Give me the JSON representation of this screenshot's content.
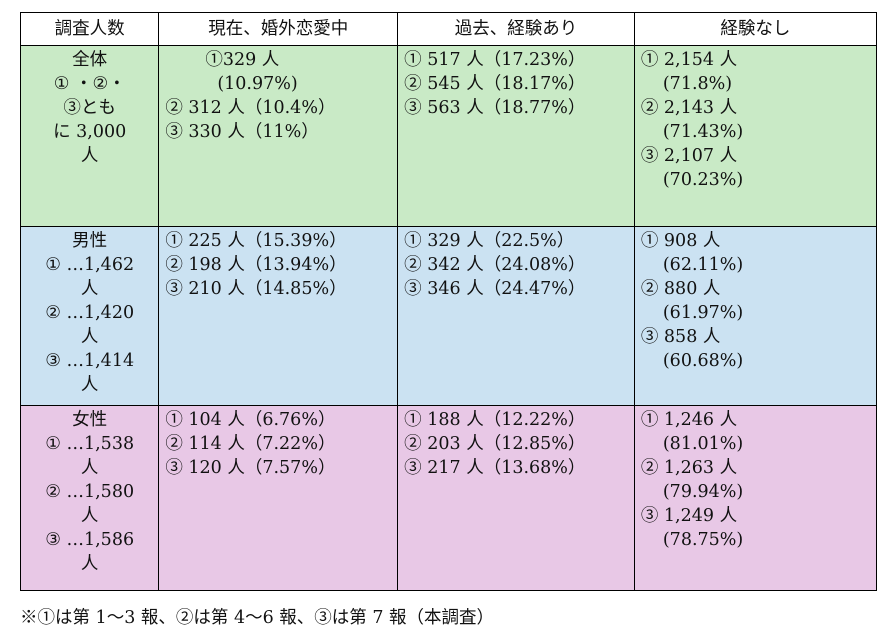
{
  "headers": [
    "調査人数",
    "現在、婚外恋愛中",
    "過去、経験あり",
    "経験なし"
  ],
  "rows": [
    {
      "group_lines": [
        "全体",
        "① ・②・",
        "③とも",
        "に 3,000",
        "人"
      ],
      "current": [
        "①329 人",
        "(10.97%)",
        "② 312 人（10.4%）",
        "③ 330 人（11%）"
      ],
      "past": [
        "① 517 人（17.23%）",
        "② 545 人（18.17%）",
        "③ 563 人（18.77%）"
      ],
      "none": [
        "① 2,154 人",
        "(71.8%)",
        "② 2,143 人",
        "(71.43%)",
        "③ 2,107 人",
        "(70.23%)"
      ]
    },
    {
      "group_lines": [
        "男性",
        "① …1,462",
        "人",
        "② …1,420",
        "人",
        "③ …1,414",
        "人"
      ],
      "current": [
        "① 225 人（15.39%）",
        "② 198 人（13.94%）",
        "③ 210 人（14.85%）"
      ],
      "past": [
        "① 329 人（22.5%）",
        "② 342 人（24.08%）",
        "③ 346 人（24.47%）"
      ],
      "none": [
        "① 908 人",
        "(62.11%)",
        "② 880 人",
        "(61.97%)",
        "③ 858 人",
        "(60.68%)"
      ]
    },
    {
      "group_lines": [
        "女性",
        "① …1,538",
        "人",
        "② …1,580",
        "人",
        "③ …1,586",
        "人"
      ],
      "current": [
        "① 104 人（6.76%）",
        "② 114 人（7.22%）",
        "③ 120 人（7.57%）"
      ],
      "past": [
        "① 188 人（12.22%）",
        "② 203 人（12.85%）",
        "③ 217 人（13.68%）"
      ],
      "none": [
        "① 1,246 人",
        "(81.01%)",
        "② 1,263 人",
        "(79.94%)",
        "③ 1,249 人",
        "(78.75%)"
      ]
    }
  ],
  "footnote": "※①は第 1〜3 報、②は第 4〜6 報、③は第 7 報（本調査）",
  "colors": {
    "all_bg": "#c9eac6",
    "male_bg": "#cbe2f2",
    "female_bg": "#e8c8e6"
  }
}
